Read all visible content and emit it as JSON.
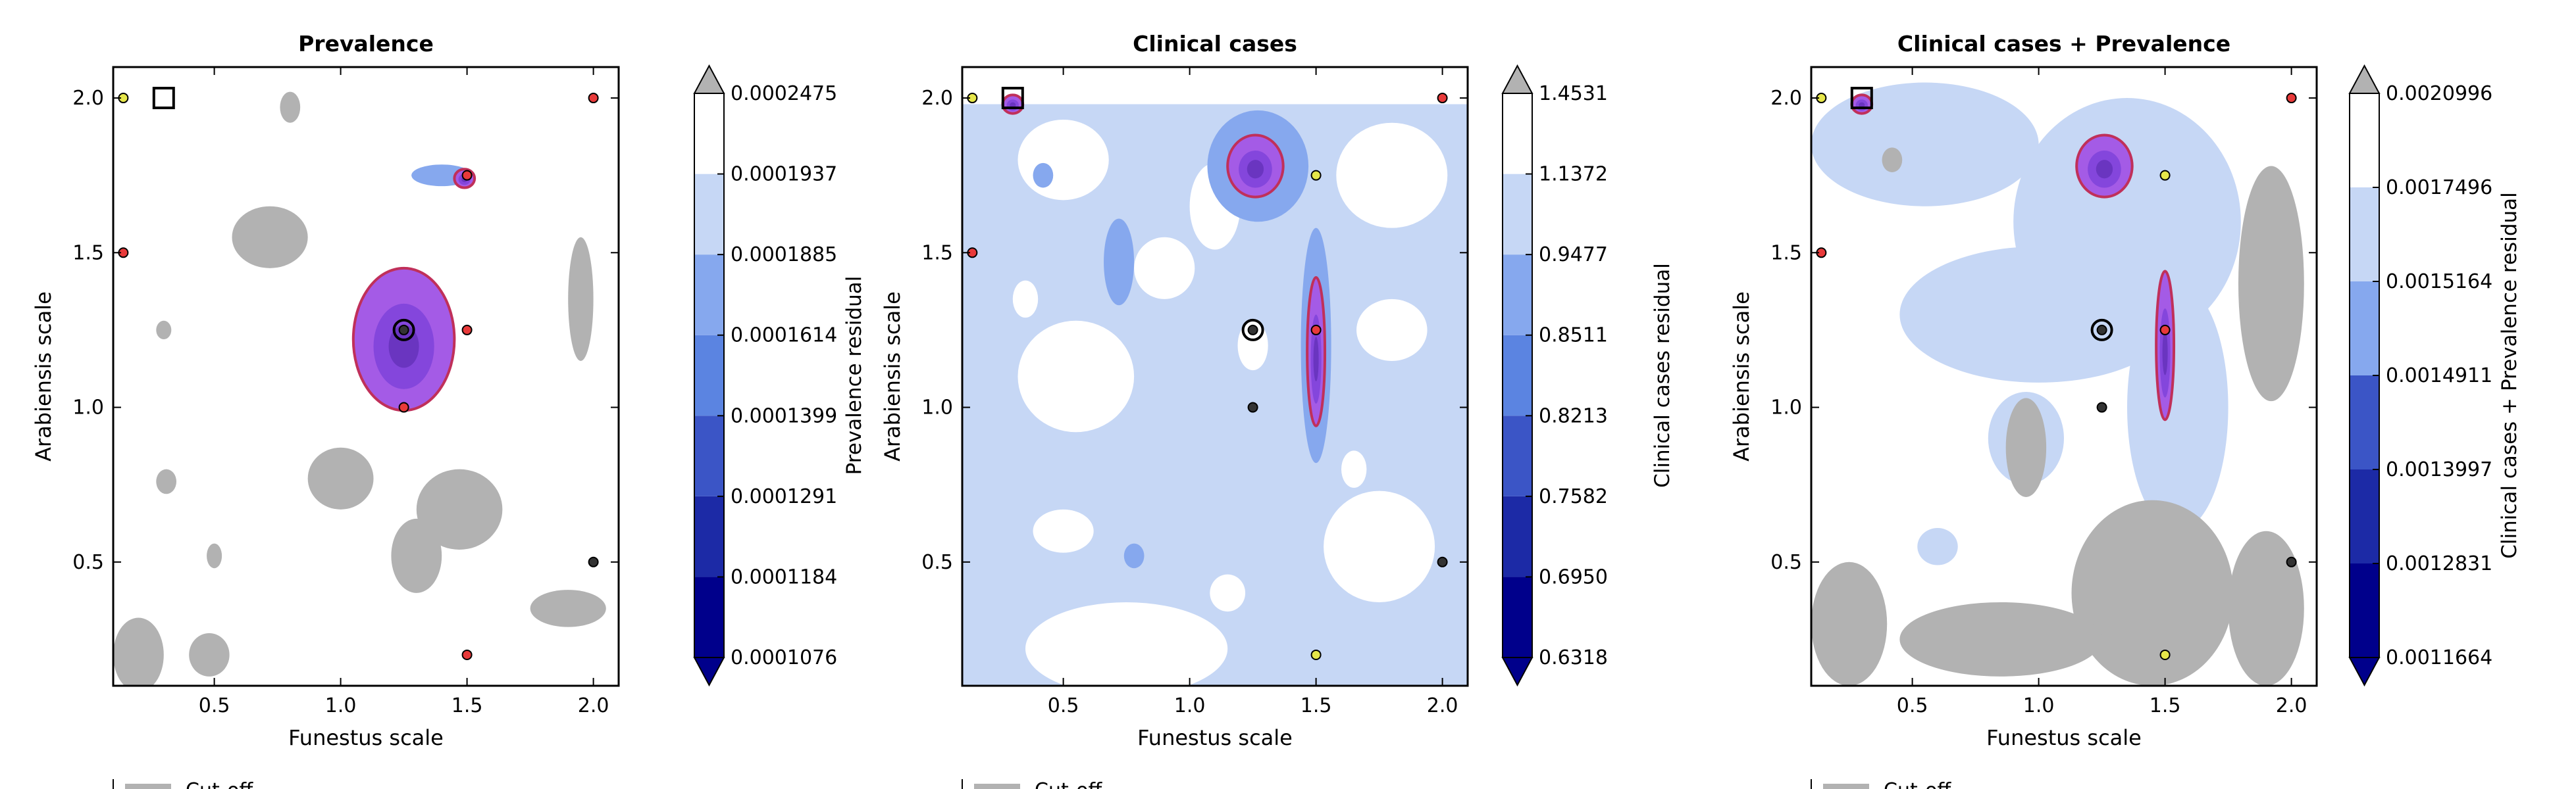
{
  "figure": {
    "background": "#ffffff",
    "colors": {
      "axes": "#000000",
      "masked_region": "#b2b2b2",
      "cmap": [
        "#00008b",
        "#1c2aa6",
        "#3b55c6",
        "#5b84e1",
        "#86a8ee",
        "#c6d7f5",
        "#ffffff"
      ],
      "over": "#b2b2b2",
      "purple_fill": "#a45be6",
      "purple_mid": "#8446dc",
      "purple_dark": "#6a35c0",
      "contour_line": "#c0305a",
      "marker_red": "#e83a3a",
      "marker_yellow": "#e6e64a",
      "marker_black": "#333333"
    },
    "legend_stub": "Cut-off"
  },
  "chart_data": [
    {
      "type": "contour",
      "title": "Prevalence",
      "xlabel": "Funestus scale",
      "ylabel": "Arabiensis scale",
      "xlim": [
        0.1,
        2.1
      ],
      "ylim": [
        0.1,
        2.1
      ],
      "xticks": [
        "0.5",
        "1.0",
        "1.5",
        "2.0"
      ],
      "yticks": [
        "0.5",
        "1.0",
        "1.5",
        "2.0"
      ],
      "grid": false,
      "background_level": "white",
      "colorbar": {
        "label": "Prevalence residual",
        "ticks": [
          "0.0001076",
          "0.0001184",
          "0.0001291",
          "0.0001399",
          "0.0001614",
          "0.0001885",
          "0.0001937",
          "0.0002475"
        ],
        "extend": "both"
      },
      "masked_blobs": [
        {
          "cx": 0.72,
          "cy": 1.55,
          "rx": 0.15,
          "ry": 0.1
        },
        {
          "cx": 1.0,
          "cy": 0.77,
          "rx": 0.13,
          "ry": 0.1
        },
        {
          "cx": 1.47,
          "cy": 0.67,
          "rx": 0.17,
          "ry": 0.13
        },
        {
          "cx": 1.3,
          "cy": 0.52,
          "rx": 0.1,
          "ry": 0.12
        },
        {
          "cx": 0.2,
          "cy": 0.2,
          "rx": 0.1,
          "ry": 0.12
        },
        {
          "cx": 0.48,
          "cy": 0.2,
          "rx": 0.08,
          "ry": 0.07
        },
        {
          "cx": 1.95,
          "cy": 1.35,
          "rx": 0.05,
          "ry": 0.2
        },
        {
          "cx": 1.9,
          "cy": 0.35,
          "rx": 0.15,
          "ry": 0.06
        },
        {
          "cx": 0.8,
          "cy": 1.97,
          "rx": 0.04,
          "ry": 0.05
        },
        {
          "cx": 0.31,
          "cy": 0.76,
          "rx": 0.04,
          "ry": 0.04
        },
        {
          "cx": 0.5,
          "cy": 0.52,
          "rx": 0.03,
          "ry": 0.04
        },
        {
          "cx": 0.3,
          "cy": 1.25,
          "rx": 0.03,
          "ry": 0.03
        }
      ],
      "blue_blobs": [
        {
          "cx": 1.4,
          "cy": 1.75,
          "rx": 0.12,
          "ry": 0.035,
          "level": 5
        }
      ],
      "purple_regions": [
        {
          "cx": 1.25,
          "cy": 1.22,
          "rx": 0.2,
          "ry": 0.23
        },
        {
          "cx": 1.49,
          "cy": 1.74,
          "rx": 0.04,
          "ry": 0.03
        }
      ],
      "markers": [
        {
          "x": 0.14,
          "y": 2.0,
          "color": "yellow"
        },
        {
          "x": 2.0,
          "y": 2.0,
          "color": "red"
        },
        {
          "x": 1.5,
          "y": 1.75,
          "color": "red"
        },
        {
          "x": 0.14,
          "y": 1.5,
          "color": "red"
        },
        {
          "x": 1.25,
          "y": 1.25,
          "color": "black"
        },
        {
          "x": 1.5,
          "y": 1.25,
          "color": "red"
        },
        {
          "x": 1.25,
          "y": 1.0,
          "color": "red"
        },
        {
          "x": 2.0,
          "y": 0.5,
          "color": "black"
        },
        {
          "x": 1.5,
          "y": 0.2,
          "color": "red"
        }
      ],
      "optimum": {
        "x": 1.25,
        "y": 1.25
      },
      "default": {
        "x": 0.3,
        "y": 2.0
      }
    },
    {
      "type": "contour",
      "title": "Clinical cases",
      "xlabel": "Funestus scale",
      "ylabel": "Arabiensis scale",
      "xlim": [
        0.1,
        2.1
      ],
      "ylim": [
        0.1,
        2.1
      ],
      "xticks": [
        "0.5",
        "1.0",
        "1.5",
        "2.0"
      ],
      "yticks": [
        "0.5",
        "1.0",
        "1.5",
        "2.0"
      ],
      "grid": false,
      "background_level": "lightblue",
      "colorbar": {
        "label": "Clinical cases residual",
        "ticks": [
          "0.6318",
          "0.6950",
          "0.7582",
          "0.8213",
          "0.8511",
          "0.9477",
          "1.1372",
          "1.4531"
        ],
        "extend": "both"
      },
      "white_blobs": [
        {
          "cx": 0.5,
          "cy": 1.8,
          "rx": 0.18,
          "ry": 0.13
        },
        {
          "cx": 0.55,
          "cy": 1.1,
          "rx": 0.23,
          "ry": 0.18
        },
        {
          "cx": 0.5,
          "cy": 0.6,
          "rx": 0.12,
          "ry": 0.07
        },
        {
          "cx": 0.75,
          "cy": 0.22,
          "rx": 0.4,
          "ry": 0.15
        },
        {
          "cx": 1.1,
          "cy": 1.65,
          "rx": 0.1,
          "ry": 0.14
        },
        {
          "cx": 1.8,
          "cy": 1.75,
          "rx": 0.22,
          "ry": 0.17
        },
        {
          "cx": 1.8,
          "cy": 1.25,
          "rx": 0.14,
          "ry": 0.1
        },
        {
          "cx": 1.75,
          "cy": 0.55,
          "rx": 0.22,
          "ry": 0.18
        },
        {
          "cx": 1.15,
          "cy": 0.4,
          "rx": 0.07,
          "ry": 0.06
        },
        {
          "cx": 0.9,
          "cy": 1.45,
          "rx": 0.12,
          "ry": 0.1
        },
        {
          "cx": 0.35,
          "cy": 1.35,
          "rx": 0.05,
          "ry": 0.06
        },
        {
          "cx": 1.25,
          "cy": 1.2,
          "rx": 0.06,
          "ry": 0.08
        },
        {
          "cx": 1.65,
          "cy": 0.8,
          "rx": 0.05,
          "ry": 0.06
        }
      ],
      "blue_blobs": [
        {
          "cx": 1.27,
          "cy": 1.78,
          "rx": 0.2,
          "ry": 0.18,
          "level": 5
        },
        {
          "cx": 1.5,
          "cy": 1.2,
          "rx": 0.06,
          "ry": 0.38,
          "level": 5
        },
        {
          "cx": 0.72,
          "cy": 1.47,
          "rx": 0.06,
          "ry": 0.14,
          "level": 5
        },
        {
          "cx": 0.42,
          "cy": 1.75,
          "rx": 0.04,
          "ry": 0.04,
          "level": 5
        },
        {
          "cx": 0.78,
          "cy": 0.52,
          "rx": 0.04,
          "ry": 0.04,
          "level": 5
        }
      ],
      "purple_regions": [
        {
          "cx": 1.26,
          "cy": 1.78,
          "rx": 0.11,
          "ry": 0.1
        },
        {
          "cx": 1.5,
          "cy": 1.18,
          "rx": 0.035,
          "ry": 0.24
        },
        {
          "cx": 0.3,
          "cy": 1.98,
          "rx": 0.04,
          "ry": 0.03
        }
      ],
      "markers": [
        {
          "x": 0.14,
          "y": 2.0,
          "color": "yellow"
        },
        {
          "x": 2.0,
          "y": 2.0,
          "color": "red"
        },
        {
          "x": 1.5,
          "y": 1.75,
          "color": "yellow"
        },
        {
          "x": 0.14,
          "y": 1.5,
          "color": "red"
        },
        {
          "x": 1.25,
          "y": 1.25,
          "color": "black"
        },
        {
          "x": 1.5,
          "y": 1.25,
          "color": "red"
        },
        {
          "x": 1.25,
          "y": 1.0,
          "color": "black"
        },
        {
          "x": 2.0,
          "y": 0.5,
          "color": "black"
        },
        {
          "x": 1.5,
          "y": 0.2,
          "color": "yellow"
        }
      ],
      "optimum": {
        "x": 1.25,
        "y": 1.25
      },
      "default": {
        "x": 0.3,
        "y": 2.0
      }
    },
    {
      "type": "contour",
      "title": "Clinical cases + Prevalence",
      "xlabel": "Funestus scale",
      "ylabel": "Arabiensis scale",
      "xlim": [
        0.1,
        2.1
      ],
      "ylim": [
        0.1,
        2.1
      ],
      "xticks": [
        "0.5",
        "1.0",
        "1.5",
        "2.0"
      ],
      "yticks": [
        "0.5",
        "1.0",
        "1.5",
        "2.0"
      ],
      "grid": false,
      "background_level": "white",
      "colorbar": {
        "label": "Clinical cases + Prevalence residual",
        "ticks": [
          "0.0011664",
          "0.0012831",
          "0.0013997",
          "0.0014911",
          "0.0015164",
          "0.0017496",
          "0.0020996"
        ],
        "extend": "both"
      },
      "light_blobs": [
        {
          "cx": 0.55,
          "cy": 1.85,
          "rx": 0.45,
          "ry": 0.2
        },
        {
          "cx": 1.35,
          "cy": 1.6,
          "rx": 0.45,
          "ry": 0.4
        },
        {
          "cx": 1.0,
          "cy": 1.3,
          "rx": 0.55,
          "ry": 0.22
        },
        {
          "cx": 1.55,
          "cy": 1.0,
          "rx": 0.2,
          "ry": 0.4
        },
        {
          "cx": 0.95,
          "cy": 0.9,
          "rx": 0.15,
          "ry": 0.15
        },
        {
          "cx": 0.6,
          "cy": 0.55,
          "rx": 0.08,
          "ry": 0.06
        }
      ],
      "masked_blobs": [
        {
          "cx": 1.92,
          "cy": 1.4,
          "rx": 0.13,
          "ry": 0.38
        },
        {
          "cx": 0.95,
          "cy": 0.87,
          "rx": 0.08,
          "ry": 0.16
        },
        {
          "cx": 1.45,
          "cy": 0.4,
          "rx": 0.32,
          "ry": 0.3
        },
        {
          "cx": 0.85,
          "cy": 0.25,
          "rx": 0.4,
          "ry": 0.12
        },
        {
          "cx": 0.25,
          "cy": 0.3,
          "rx": 0.15,
          "ry": 0.2
        },
        {
          "cx": 1.9,
          "cy": 0.35,
          "rx": 0.15,
          "ry": 0.25
        },
        {
          "cx": 0.42,
          "cy": 1.8,
          "rx": 0.04,
          "ry": 0.04
        }
      ],
      "purple_regions": [
        {
          "cx": 1.26,
          "cy": 1.78,
          "rx": 0.11,
          "ry": 0.1
        },
        {
          "cx": 1.5,
          "cy": 1.2,
          "rx": 0.035,
          "ry": 0.24
        },
        {
          "cx": 0.3,
          "cy": 1.98,
          "rx": 0.04,
          "ry": 0.03
        }
      ],
      "markers": [
        {
          "x": 0.14,
          "y": 2.0,
          "color": "yellow"
        },
        {
          "x": 2.0,
          "y": 2.0,
          "color": "red"
        },
        {
          "x": 1.5,
          "y": 1.75,
          "color": "yellow"
        },
        {
          "x": 0.14,
          "y": 1.5,
          "color": "red"
        },
        {
          "x": 1.25,
          "y": 1.25,
          "color": "black"
        },
        {
          "x": 1.5,
          "y": 1.25,
          "color": "red"
        },
        {
          "x": 1.25,
          "y": 1.0,
          "color": "black"
        },
        {
          "x": 2.0,
          "y": 0.5,
          "color": "black"
        },
        {
          "x": 1.5,
          "y": 0.2,
          "color": "yellow"
        }
      ],
      "optimum": {
        "x": 1.25,
        "y": 1.25
      },
      "default": {
        "x": 0.3,
        "y": 2.0
      }
    }
  ]
}
